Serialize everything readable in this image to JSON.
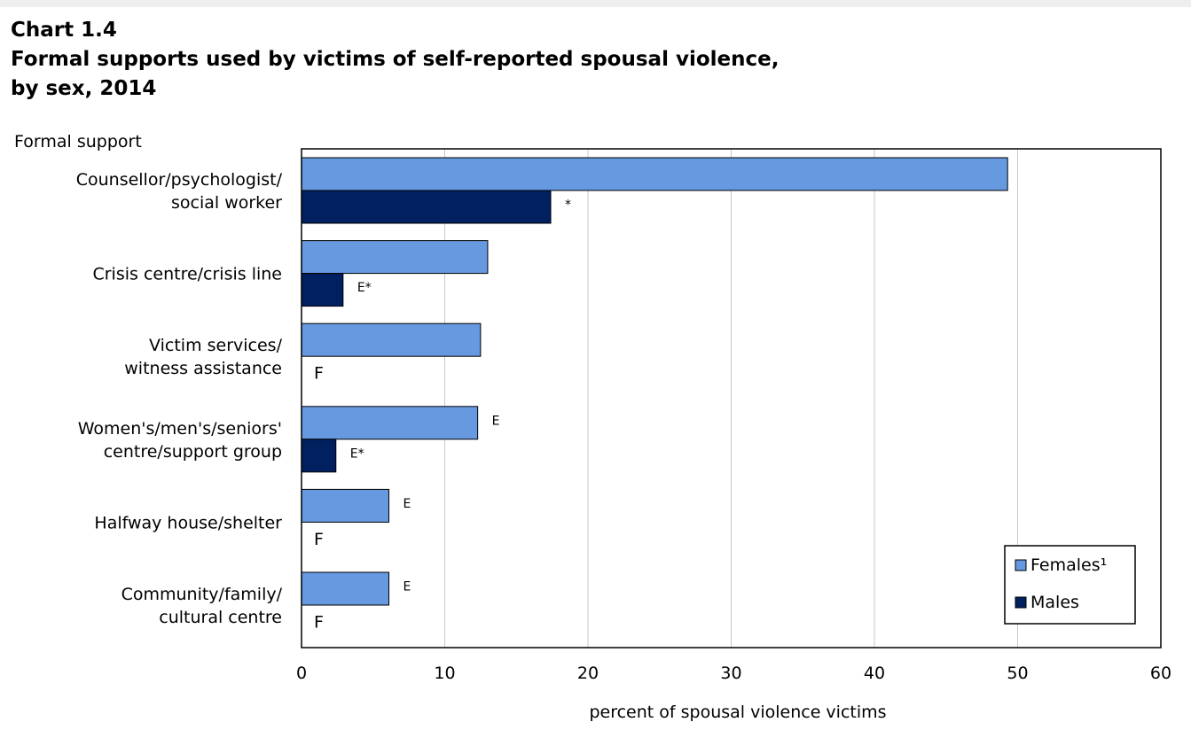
{
  "title": {
    "line1": "Chart 1.4",
    "line2": "Formal supports used by victims of self-reported spousal violence,",
    "line3": "by sex, 2014"
  },
  "chart_data": {
    "type": "bar",
    "orientation": "horizontal",
    "ylabel": "Formal support",
    "xlabel": "percent of spousal violence victims",
    "xlim": [
      0,
      60
    ],
    "xticks": [
      0,
      10,
      20,
      30,
      40,
      50,
      60
    ],
    "grid": true,
    "legend_position": "bottom-right",
    "categories": [
      [
        "Counsellor/psychologist/",
        "social worker"
      ],
      [
        "Crisis centre/crisis line"
      ],
      [
        "Victim services/",
        "witness assistance"
      ],
      [
        "Women's/men's/seniors'",
        "centre/support group"
      ],
      [
        "Halfway house/shelter"
      ],
      [
        "Community/family/",
        "cultural centre"
      ]
    ],
    "series": [
      {
        "name": "Females¹",
        "color": "#6699e0",
        "values": [
          49.3,
          13.0,
          12.5,
          12.3,
          6.1,
          6.1
        ],
        "annotations": [
          "",
          "",
          "",
          "E",
          "E",
          "E"
        ]
      },
      {
        "name": "Males",
        "color": "#002060",
        "values": [
          17.4,
          2.9,
          null,
          2.4,
          null,
          null
        ],
        "annotations": [
          "*",
          "E*",
          "F",
          "E*",
          "F",
          "F"
        ]
      }
    ]
  }
}
